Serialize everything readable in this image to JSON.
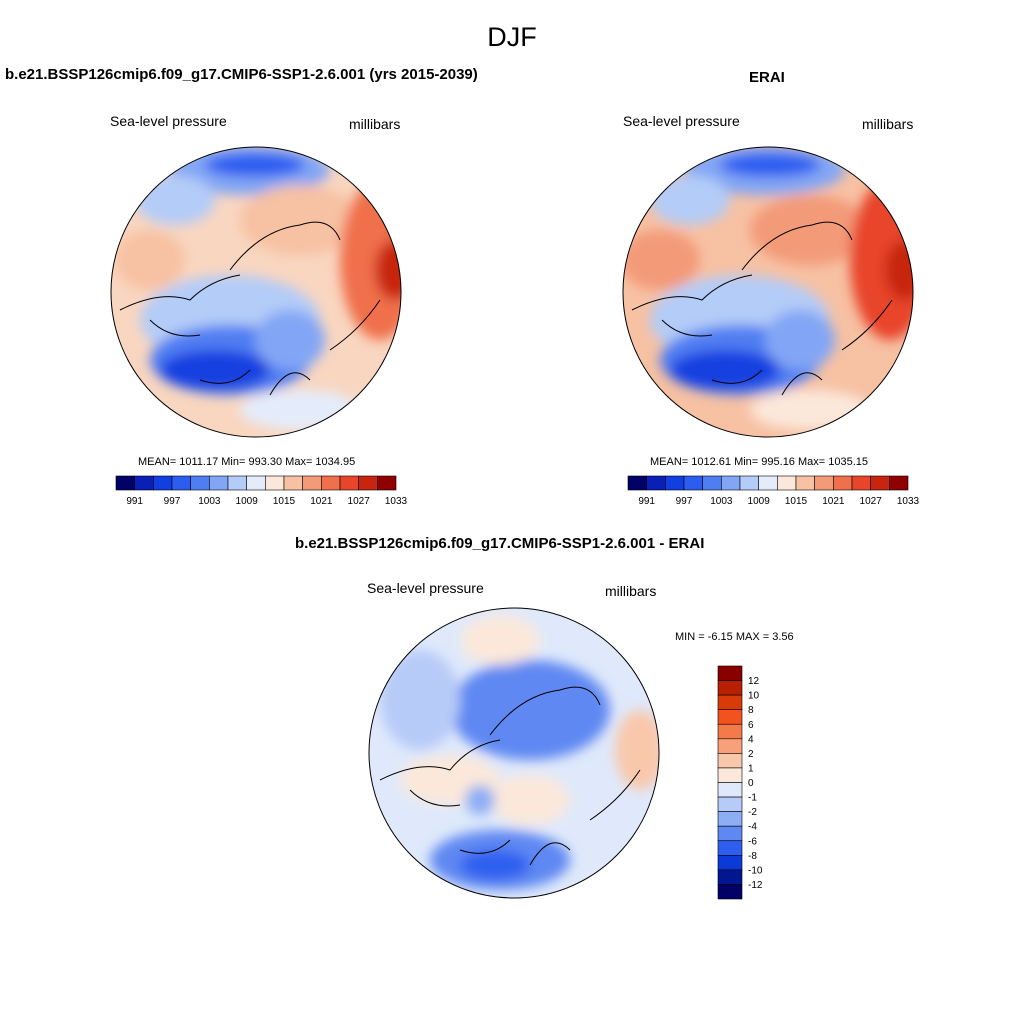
{
  "figure": {
    "title": "DJF"
  },
  "panels": [
    {
      "title": "b.e21.BSSP126cmip6.f09_g17.CMIP6-SSP1-2.6.001 (yrs 2015-2039)",
      "left_label": "Sea-level pressure",
      "right_label": "millibars",
      "stats": "MEAN= 1011.17  Min= 993.30  Max= 1034.95"
    },
    {
      "title": "ERAI",
      "left_label": "Sea-level pressure",
      "right_label": "millibars",
      "stats": "MEAN= 1012.61  Min= 995.16  Max= 1035.15"
    },
    {
      "title": "b.e21.BSSP126cmip6.f09_g17.CMIP6-SSP1-2.6.001 - ERAI",
      "left_label": "Sea-level pressure",
      "right_label": "millibars",
      "stats": "MIN =  -6.15 MAX =   3.56"
    }
  ],
  "colorbars": {
    "abs": {
      "ticks": [
        "991",
        "997",
        "1003",
        "1009",
        "1015",
        "1021",
        "1027",
        "1033"
      ],
      "colors": [
        "#000066",
        "#0a1fb5",
        "#1240e0",
        "#2a5df0",
        "#4f7ef2",
        "#82a6f5",
        "#b4ccf8",
        "#e4ecfb",
        "#fbe8da",
        "#f7c1a3",
        "#f39a78",
        "#f06f4c",
        "#e8452a",
        "#c7250f",
        "#900000"
      ]
    },
    "diff": {
      "ticks": [
        "12",
        "10",
        "8",
        "6",
        "4",
        "2",
        "1",
        "0",
        "-1",
        "-2",
        "-4",
        "-6",
        "-8",
        "-10",
        "-12"
      ],
      "colors": [
        "#8a0000",
        "#b81e00",
        "#d83a0a",
        "#f2521e",
        "#f57a4a",
        "#f7a07a",
        "#f9c8ac",
        "#fbe8da",
        "#dfe9fb",
        "#b7cbf8",
        "#8caef5",
        "#5f88f2",
        "#2e5ef0",
        "#0b3ad8",
        "#00178f",
        "#000066"
      ]
    }
  }
}
